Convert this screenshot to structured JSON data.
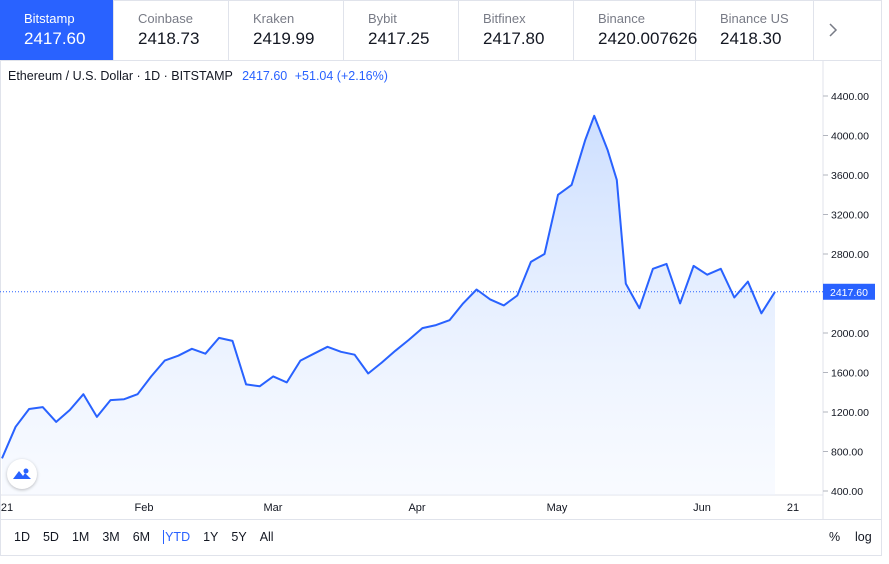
{
  "tabs": [
    {
      "exchange": "Bitstamp",
      "price": "2417.60",
      "active": true
    },
    {
      "exchange": "Coinbase",
      "price": "2418.73"
    },
    {
      "exchange": "Kraken",
      "price": "2419.99"
    },
    {
      "exchange": "Bybit",
      "price": "2417.25"
    },
    {
      "exchange": "Bitfinex",
      "price": "2417.80"
    },
    {
      "exchange": "Binance",
      "price": "2420.007626"
    },
    {
      "exchange": "Binance US",
      "price": "2418.30"
    }
  ],
  "next_icon": "chevron-right-icon",
  "legend": {
    "symbol": "Ethereum / U.S. Dollar · 1D · BITSTAMP",
    "last": "2417.60",
    "change": "+51.04 (+2.16%)"
  },
  "ranges": [
    "1D",
    "5D",
    "1M",
    "3M",
    "6M",
    "YTD",
    "1Y",
    "5Y",
    "All"
  ],
  "selected_range": "YTD",
  "scale_options": {
    "percent": "%",
    "log": "log"
  },
  "colors": {
    "accent": "#2962ff",
    "line": "#2962ff",
    "fill_top": "#c7dbff",
    "grid": "#f0f3fa"
  },
  "chart_data": {
    "type": "area",
    "title": "Ethereum / U.S. Dollar",
    "interval": "1D",
    "last_price_label": "2417.60",
    "x_labels": [
      "21",
      "Feb",
      "Mar",
      "Apr",
      "May",
      "Jun",
      "21"
    ],
    "y_ticks": [
      "400.00",
      "800.00",
      "1200.00",
      "1600.00",
      "2000.00",
      "2400.00",
      "2800.00",
      "3200.00",
      "3600.00",
      "4000.00",
      "4400.00"
    ],
    "ylim": [
      400,
      4400
    ],
    "grid": false,
    "series": [
      {
        "x": [
          "2021-01-01",
          "2021-01-04",
          "2021-01-07",
          "2021-01-10",
          "2021-01-13",
          "2021-01-16",
          "2021-01-19",
          "2021-01-22",
          "2021-01-25",
          "2021-01-28",
          "2021-01-31",
          "2021-02-03",
          "2021-02-06",
          "2021-02-09",
          "2021-02-12",
          "2021-02-15",
          "2021-02-18",
          "2021-02-21",
          "2021-02-24",
          "2021-02-27",
          "2021-03-02",
          "2021-03-05",
          "2021-03-08",
          "2021-03-11",
          "2021-03-14",
          "2021-03-17",
          "2021-03-20",
          "2021-03-23",
          "2021-03-26",
          "2021-03-29",
          "2021-04-01",
          "2021-04-04",
          "2021-04-07",
          "2021-04-10",
          "2021-04-13",
          "2021-04-16",
          "2021-04-19",
          "2021-04-22",
          "2021-04-25",
          "2021-04-28",
          "2021-05-01",
          "2021-05-04",
          "2021-05-07",
          "2021-05-10",
          "2021-05-12",
          "2021-05-15",
          "2021-05-17",
          "2021-05-19",
          "2021-05-22",
          "2021-05-25",
          "2021-05-28",
          "2021-05-31",
          "2021-06-03",
          "2021-06-06",
          "2021-06-09",
          "2021-06-12",
          "2021-06-15",
          "2021-06-18",
          "2021-06-21"
        ],
        "values": [
          730,
          1050,
          1230,
          1250,
          1100,
          1220,
          1380,
          1150,
          1320,
          1330,
          1380,
          1560,
          1720,
          1770,
          1840,
          1790,
          1950,
          1920,
          1480,
          1460,
          1560,
          1500,
          1720,
          1790,
          1860,
          1810,
          1780,
          1590,
          1700,
          1820,
          1930,
          2050,
          2080,
          2130,
          2300,
          2440,
          2340,
          2280,
          2380,
          2720,
          2800,
          3400,
          3500,
          3950,
          4200,
          3850,
          3550,
          2500,
          2250,
          2650,
          2700,
          2300,
          2680,
          2590,
          2650,
          2360,
          2520,
          2200,
          2417.6
        ]
      }
    ]
  }
}
